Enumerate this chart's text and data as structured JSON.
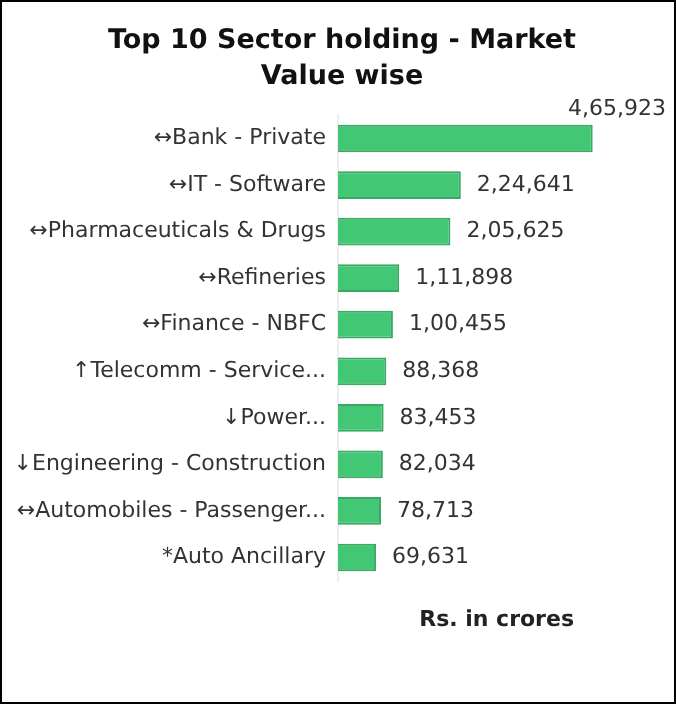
{
  "chart_data": {
    "type": "bar",
    "orientation": "horizontal",
    "title": "Top 10 Sector holding - Market Value wise",
    "categories": [
      "↔Bank - Private",
      "↔IT - Software",
      "↔Pharmaceuticals & Drugs",
      "↔Refineries",
      "↔Finance - NBFC",
      "↑Telecomm - Service...",
      "↓Power...",
      "↓Engineering - Construction",
      "↔Automobiles - Passenger...",
      "*Auto Ancillary"
    ],
    "values": [
      465923,
      224641,
      205625,
      111898,
      100455,
      88368,
      83453,
      82034,
      78713,
      69631
    ],
    "value_labels": [
      "4,65,923",
      "2,24,641",
      "2,05,625",
      "1,11,898",
      "1,00,455",
      "88,368",
      "83,453",
      "82,034",
      "78,713",
      "69,631"
    ],
    "color": "#42c774",
    "tick_labels": "y",
    "grid": false,
    "legend": false,
    "annotations": [
      "Rs. in crores"
    ]
  }
}
